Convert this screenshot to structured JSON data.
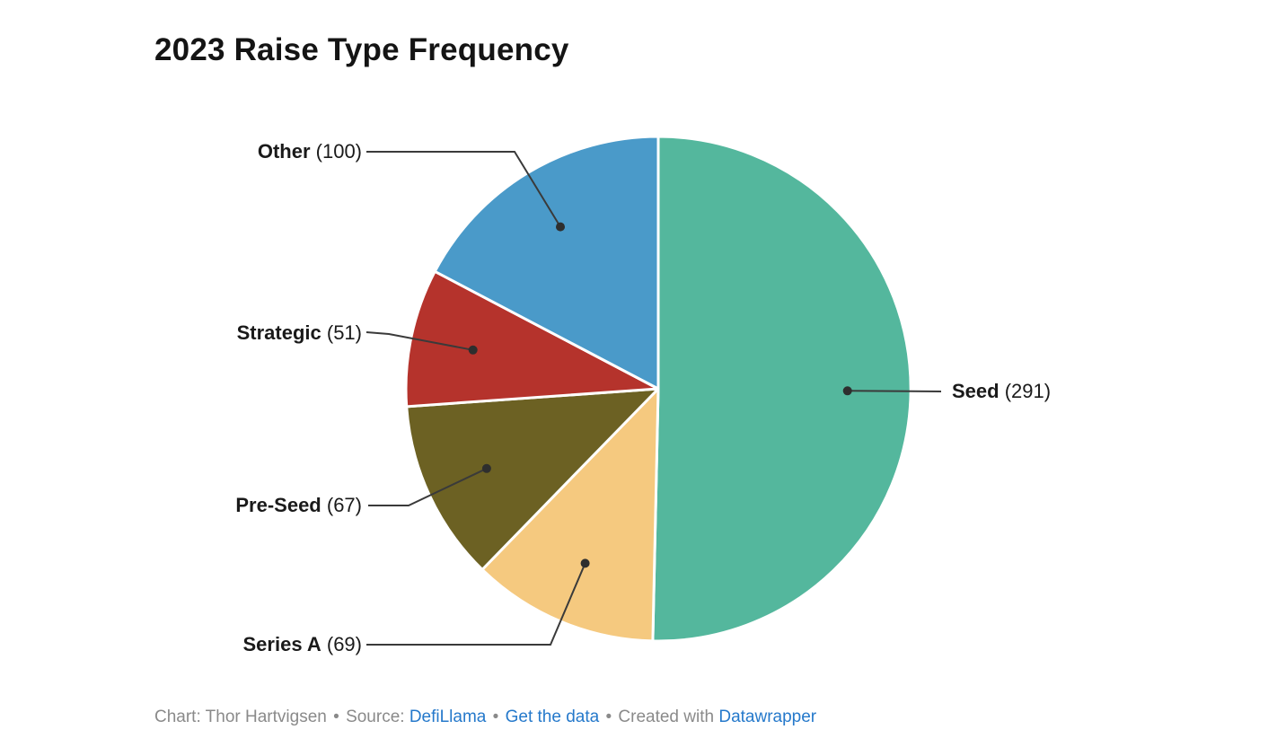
{
  "title": "2023 Raise Type Frequency",
  "chart_data": {
    "type": "pie",
    "title": "2023 Raise Type Frequency",
    "start_angle": "top",
    "direction": "clockwise",
    "total": 578,
    "slices": [
      {
        "label": "Seed",
        "value": 291,
        "value_text": "(291)",
        "color": "#54b79d"
      },
      {
        "label": "Series A",
        "value": 69,
        "value_text": "(69)",
        "color": "#f5c97f"
      },
      {
        "label": "Pre-Seed",
        "value": 67,
        "value_text": "(67)",
        "color": "#6c6123"
      },
      {
        "label": "Strategic",
        "value": 51,
        "value_text": "(51)",
        "color": "#b5332c"
      },
      {
        "label": "Other",
        "value": 100,
        "value_text": "(100)",
        "color": "#4a9ac9"
      }
    ],
    "leader_line_color": "#3a3a3a",
    "slice_border_color": "#ffffff"
  },
  "footer": {
    "credit": "Chart: Thor Hartvigsen",
    "separator": "•",
    "source_label": "Source:",
    "source_link": "DefiLlama",
    "data_link": "Get the data",
    "created_with": "Created with",
    "tool_link": "Datawrapper"
  }
}
